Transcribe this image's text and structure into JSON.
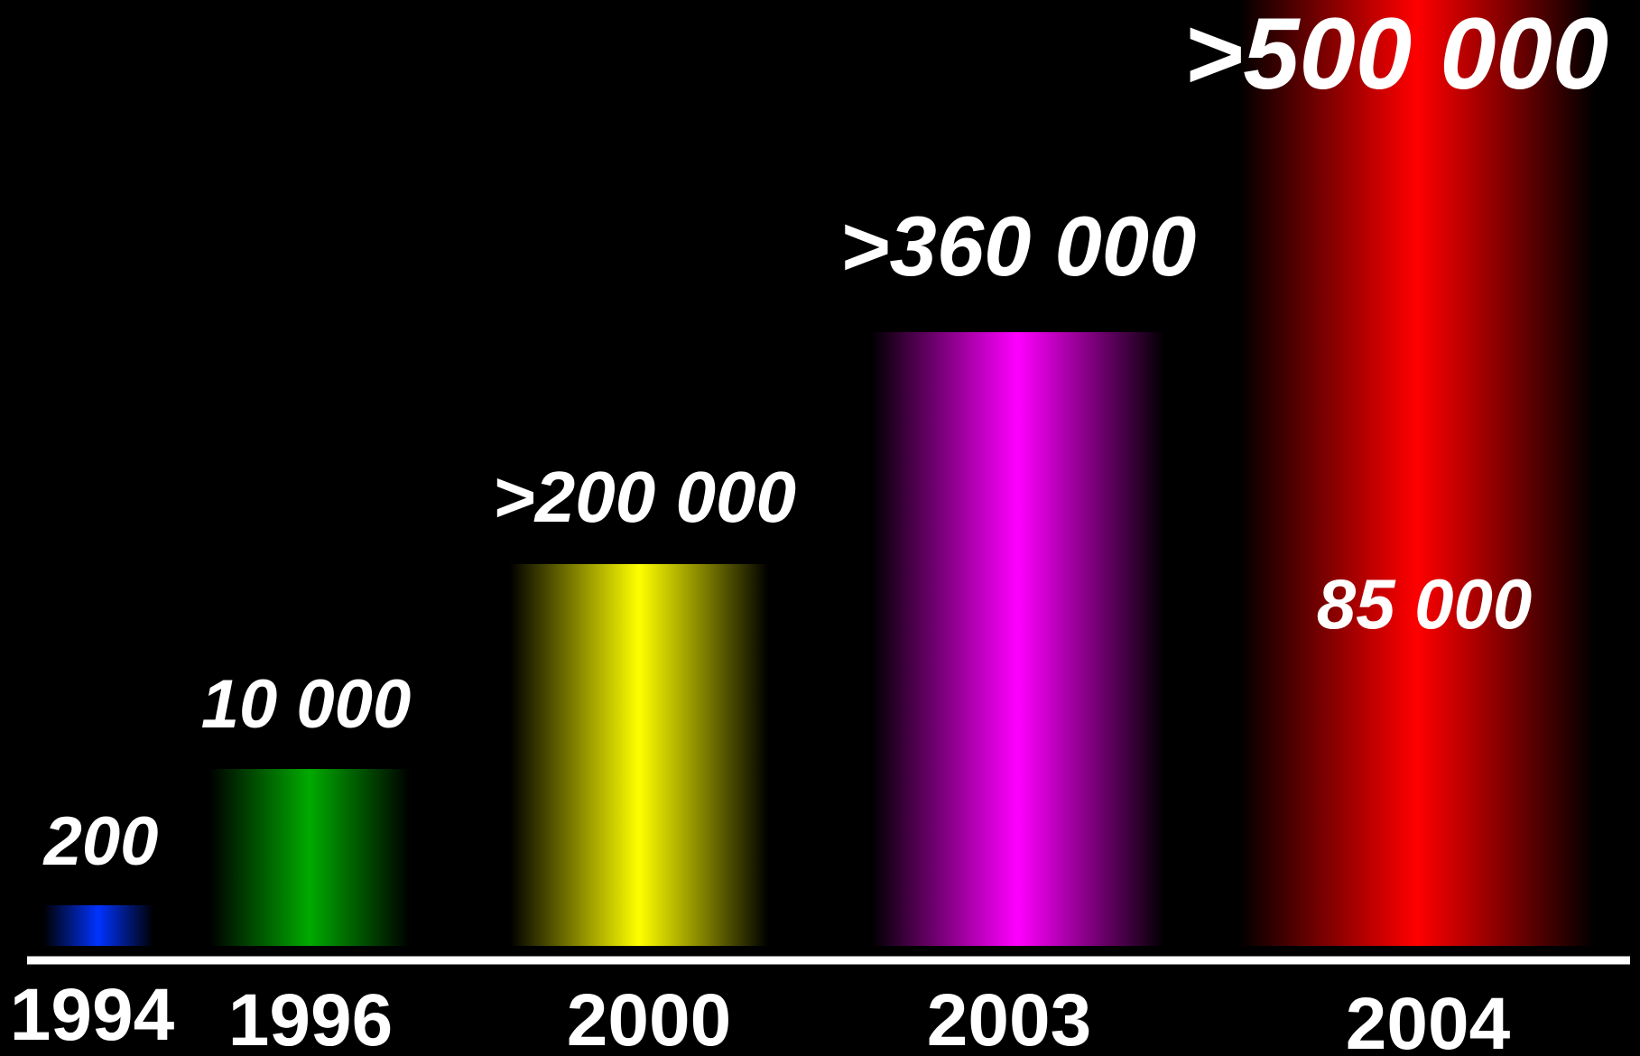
{
  "chart_data": {
    "type": "bar",
    "categories": [
      "1994",
      "1996",
      "2000",
      "2003",
      "2004"
    ],
    "values": [
      200,
      10000,
      200000,
      360000,
      500000
    ],
    "value_labels": [
      "200",
      "10 000",
      ">200 000",
      ">360 000",
      ">500 000"
    ],
    "inner_labels": [
      "",
      "",
      "",
      "",
      "85 000"
    ],
    "colors": [
      "#0033ff",
      "#00aa00",
      "#ffff00",
      "#ff00ff",
      "#ff0000"
    ],
    "title": "",
    "xlabel": "",
    "ylabel": "",
    "grid": false,
    "legend": "none",
    "background": "#000000",
    "axis_color": "#ffffff"
  }
}
